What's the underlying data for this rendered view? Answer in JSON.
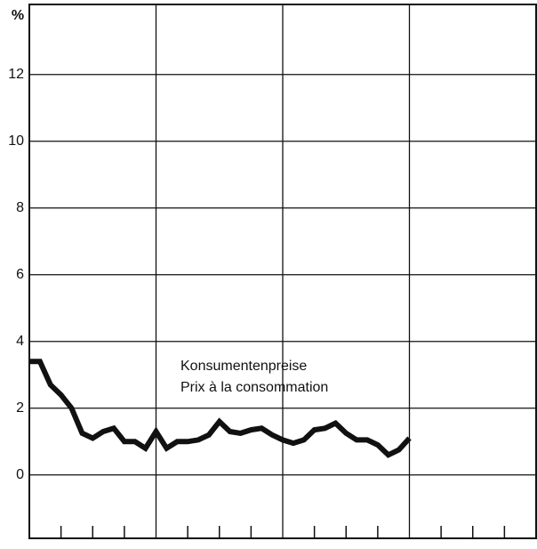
{
  "chart_data": {
    "type": "line",
    "y_label": "%",
    "annotation": [
      "Konsumentenpreise",
      "Prix à la consommation"
    ],
    "categories": [
      null,
      null,
      null,
      null,
      null,
      null,
      null,
      null,
      null,
      null,
      null,
      null,
      null,
      null,
      null,
      null,
      null,
      null,
      null,
      null,
      null,
      null,
      null,
      null,
      null,
      null,
      null,
      null,
      null,
      null,
      null,
      null,
      null,
      null,
      null,
      null,
      null,
      null,
      null,
      null,
      null,
      null,
      null,
      null,
      null,
      null,
      null,
      null
    ],
    "series": [
      {
        "color": "#111111",
        "values": [
          3.4,
          3.4,
          2.7,
          2.4,
          2.0,
          1.25,
          1.1,
          1.3,
          1.4,
          1.0,
          1.0,
          0.8,
          1.3,
          0.8,
          1.0,
          1.0,
          1.05,
          1.2,
          1.6,
          1.3,
          1.25,
          1.35,
          1.4,
          1.2,
          1.05,
          0.95,
          1.05,
          1.35,
          1.4,
          1.55,
          1.25,
          1.05,
          1.05,
          0.9,
          0.6,
          0.75,
          1.1,
          null,
          null,
          null,
          null,
          null,
          null,
          null,
          null,
          null,
          null,
          null
        ]
      }
    ],
    "ylim": [
      -1.9,
      14.1
    ],
    "yticks": [
      0,
      2,
      4,
      6,
      8,
      10,
      12
    ],
    "grid": true
  }
}
